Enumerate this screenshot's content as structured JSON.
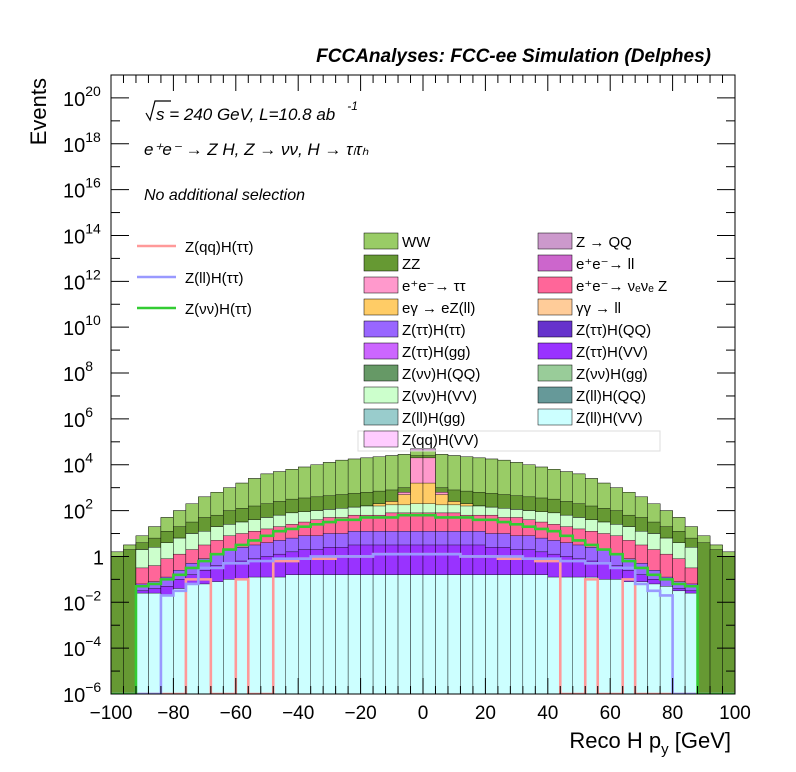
{
  "chart_data": {
    "type": "stacked-histogram",
    "title": "FCCAnalyses: FCC-ee Simulation (Delphes)",
    "xlabel": "Reco H p_y [GeV]",
    "ylabel": "Events",
    "xlim": [
      -100,
      100
    ],
    "ylim": [
      1e-06,
      1e+21
    ],
    "log_y": true,
    "x_ticks": [
      "−100",
      "−80",
      "−60",
      "−40",
      "−20",
      "0",
      "20",
      "40",
      "60",
      "80",
      "100"
    ],
    "y_ticks": [
      {
        "base": "10",
        "exp": "−6"
      },
      {
        "base": "10",
        "exp": "−4"
      },
      {
        "base": "10",
        "exp": "−2"
      },
      {
        "base": "1",
        "exp": ""
      },
      {
        "base": "10",
        "exp": "2"
      },
      {
        "base": "10",
        "exp": "4"
      },
      {
        "base": "10",
        "exp": "6"
      },
      {
        "base": "10",
        "exp": "8"
      },
      {
        "base": "10",
        "exp": "10"
      },
      {
        "base": "10",
        "exp": "12"
      },
      {
        "base": "10",
        "exp": "14"
      },
      {
        "base": "10",
        "exp": "16"
      },
      {
        "base": "10",
        "exp": "18"
      },
      {
        "base": "10",
        "exp": "20"
      }
    ],
    "annotations": {
      "energy_sqrt": "s",
      "energy_rest": " = 240 GeV, L=10.8 ab",
      "lumi_exp": "-1",
      "process": "e⁺e⁻ → Z H, Z → νν, H → τₗτₕ",
      "selection": "No additional selection"
    },
    "signals": [
      {
        "name": "Z(qq)H(ττ)",
        "color": "#ff9999"
      },
      {
        "name": "Z(ll)H(ττ)",
        "color": "#9999ff"
      },
      {
        "name": "Z(νν)H(ττ)",
        "color": "#33cc33"
      }
    ],
    "backgrounds": [
      {
        "name": "WW",
        "color": "#99cc66"
      },
      {
        "name": "Z → QQ",
        "color": "#cc99cc"
      },
      {
        "name": "ZZ",
        "color": "#669933"
      },
      {
        "name": "e⁺e⁻→ ll",
        "color": "#cc66cc"
      },
      {
        "name": "e⁺e⁻→ ττ",
        "color": "#ff99cc"
      },
      {
        "name": "e⁺e⁻→ νₑνₑ Z",
        "color": "#ff6699"
      },
      {
        "name": "eγ → eZ(ll)",
        "color": "#ffcc66"
      },
      {
        "name": "γγ → ll",
        "color": "#ffcc99"
      },
      {
        "name": "Z(ττ)H(ττ)",
        "color": "#9966ff"
      },
      {
        "name": "Z(ττ)H(QQ)",
        "color": "#6633cc"
      },
      {
        "name": "Z(ττ)H(gg)",
        "color": "#cc66ff"
      },
      {
        "name": "Z(ττ)H(VV)",
        "color": "#9933ff"
      },
      {
        "name": "Z(νν)H(QQ)",
        "color": "#669966"
      },
      {
        "name": "Z(νν)H(gg)",
        "color": "#99cc99"
      },
      {
        "name": "Z(νν)H(VV)",
        "color": "#ccffcc"
      },
      {
        "name": "Z(ll)H(QQ)",
        "color": "#669999"
      },
      {
        "name": "Z(ll)H(gg)",
        "color": "#99cccc"
      },
      {
        "name": "Z(ll)H(VV)",
        "color": "#ccffff"
      },
      {
        "name": "Z(qq)H(VV)",
        "color": "#ffccff"
      }
    ],
    "bin_width_gev": 4,
    "bins_x_centers": [
      -98,
      -94,
      -90,
      -86,
      -82,
      -78,
      -74,
      -70,
      -66,
      -62,
      -58,
      -54,
      -50,
      -46,
      -42,
      -38,
      -34,
      -30,
      -26,
      -22,
      -18,
      -14,
      -10,
      -6,
      -2,
      2,
      6,
      10,
      14,
      18,
      22,
      26,
      30,
      34,
      38,
      42,
      46,
      50,
      54,
      58,
      62,
      66,
      70,
      74,
      78,
      82,
      86,
      90,
      94,
      98
    ],
    "stack_layers_log10_upper_edges": [
      {
        "name": "Z(ll)H(VV) and below",
        "color": "#ccffff",
        "values": [
          -6,
          -6,
          -1.6,
          -1.6,
          -1.7,
          -1.4,
          -1.2,
          -1.2,
          -1.1,
          -1.0,
          -1.0,
          -0.9,
          -0.9,
          -0.9,
          -0.8,
          -0.8,
          -0.8,
          -0.8,
          -0.8,
          -0.8,
          -0.8,
          -0.8,
          -0.8,
          -0.8,
          -0.8,
          -0.8,
          -0.8,
          -0.8,
          -0.8,
          -0.8,
          -0.8,
          -0.8,
          -0.8,
          -0.8,
          -0.8,
          -0.9,
          -0.9,
          -0.9,
          -0.9,
          -1.0,
          -1.0,
          -1.1,
          -1.1,
          -1.2,
          -1.3,
          -1.5,
          -1.6,
          -6,
          -6,
          -6
        ]
      },
      {
        "name": "Z(ττ)H(VV) and below",
        "color": "#9933ff",
        "values": [
          -6,
          -6,
          -1.5,
          -1.4,
          -1.3,
          -1.0,
          -0.8,
          -0.6,
          -0.4,
          -0.3,
          -0.2,
          -0.1,
          0.0,
          0.1,
          0.2,
          0.3,
          0.3,
          0.4,
          0.4,
          0.5,
          0.5,
          0.5,
          0.5,
          0.5,
          0.5,
          0.5,
          0.5,
          0.5,
          0.5,
          0.5,
          0.4,
          0.4,
          0.3,
          0.3,
          0.2,
          0.1,
          0.0,
          -0.1,
          -0.2,
          -0.3,
          -0.4,
          -0.6,
          -0.8,
          -1.0,
          -1.3,
          -1.4,
          -1.5,
          -6,
          -6,
          -6
        ]
      },
      {
        "name": "Z(ττ)H(ττ) and below",
        "color": "#9966ff",
        "values": [
          -6,
          -6,
          -1.2,
          -1.1,
          -0.9,
          -0.6,
          -0.3,
          -0.1,
          0.1,
          0.3,
          0.4,
          0.5,
          0.6,
          0.7,
          0.8,
          0.9,
          0.9,
          1.0,
          1.0,
          1.1,
          1.1,
          1.1,
          1.1,
          1.1,
          1.1,
          1.1,
          1.1,
          1.1,
          1.1,
          1.1,
          1.0,
          1.0,
          0.9,
          0.9,
          0.8,
          0.7,
          0.6,
          0.5,
          0.4,
          0.3,
          0.1,
          -0.1,
          -0.3,
          -0.6,
          -0.9,
          -1.1,
          -1.2,
          -6,
          -6,
          -6
        ]
      },
      {
        "name": "e⁺e⁻→ νₑνₑ Z and below",
        "color": "#ff6699",
        "values": [
          -6,
          -6,
          -0.5,
          -0.4,
          -0.1,
          0.1,
          0.3,
          0.5,
          0.7,
          0.9,
          1.0,
          1.1,
          1.2,
          1.3,
          1.4,
          1.5,
          1.6,
          1.7,
          1.7,
          1.8,
          1.8,
          1.8,
          1.9,
          1.9,
          1.9,
          1.9,
          1.9,
          1.9,
          1.8,
          1.8,
          1.8,
          1.7,
          1.7,
          1.6,
          1.5,
          1.4,
          1.3,
          1.2,
          1.1,
          1.0,
          0.9,
          0.7,
          0.5,
          0.3,
          0.1,
          -0.1,
          -0.5,
          -6,
          -6,
          -6
        ]
      },
      {
        "name": "Z(νν)H(VV) and below",
        "color": "#ccffcc",
        "values": [
          -6,
          -6,
          0.3,
          0.4,
          0.6,
          0.8,
          1.0,
          1.1,
          1.3,
          1.4,
          1.5,
          1.6,
          1.7,
          1.8,
          1.9,
          1.95,
          2.0,
          2.05,
          2.1,
          2.15,
          2.2,
          2.2,
          2.25,
          2.25,
          2.3,
          2.3,
          2.25,
          2.25,
          2.2,
          2.2,
          2.15,
          2.1,
          2.05,
          2.0,
          1.95,
          1.9,
          1.8,
          1.7,
          1.6,
          1.5,
          1.4,
          1.3,
          1.1,
          1.0,
          0.8,
          0.6,
          0.4,
          -6,
          -6,
          -6
        ]
      },
      {
        "name": "eγ → eZ(ll) and below",
        "color": "#ffcc66",
        "values": [
          -6,
          -6,
          0.3,
          0.4,
          0.6,
          0.8,
          1.0,
          1.1,
          1.3,
          1.4,
          1.5,
          1.6,
          1.7,
          1.8,
          1.9,
          1.95,
          2.0,
          2.05,
          2.1,
          2.15,
          2.2,
          2.3,
          2.4,
          2.7,
          3.2,
          3.2,
          2.7,
          2.4,
          2.3,
          2.2,
          2.15,
          2.1,
          2.05,
          2.0,
          1.95,
          1.9,
          1.8,
          1.7,
          1.6,
          1.5,
          1.4,
          1.3,
          1.1,
          1.0,
          0.8,
          0.6,
          0.4,
          -6,
          -6,
          -6
        ]
      },
      {
        "name": "e⁺e⁻→ ττ and below",
        "color": "#ff99cc",
        "values": [
          -6,
          -6,
          0.3,
          0.4,
          0.6,
          0.8,
          1.0,
          1.1,
          1.3,
          1.4,
          1.5,
          1.6,
          1.7,
          1.8,
          1.9,
          1.95,
          2.0,
          2.05,
          2.1,
          2.15,
          2.2,
          2.3,
          2.4,
          2.8,
          4.3,
          4.3,
          2.8,
          2.4,
          2.3,
          2.2,
          2.15,
          2.1,
          2.05,
          2.0,
          1.95,
          1.9,
          1.8,
          1.7,
          1.6,
          1.5,
          1.4,
          1.3,
          1.1,
          1.0,
          0.8,
          0.6,
          0.4,
          -6,
          -6,
          -6
        ]
      },
      {
        "name": "ZZ and below",
        "color": "#669933",
        "values": [
          0.0,
          0.3,
          0.6,
          0.8,
          1.1,
          1.3,
          1.5,
          1.7,
          1.8,
          2.0,
          2.1,
          2.2,
          2.3,
          2.4,
          2.5,
          2.55,
          2.6,
          2.65,
          2.7,
          2.75,
          2.8,
          2.85,
          2.9,
          3.0,
          4.4,
          4.4,
          3.0,
          2.9,
          2.85,
          2.8,
          2.75,
          2.7,
          2.65,
          2.6,
          2.55,
          2.5,
          2.4,
          2.3,
          2.2,
          2.1,
          2.0,
          1.8,
          1.7,
          1.5,
          1.3,
          1.1,
          0.8,
          0.6,
          0.3,
          0.0
        ]
      },
      {
        "name": "WW and below",
        "color": "#99cc66",
        "values": [
          0.2,
          0.5,
          0.9,
          1.3,
          1.7,
          2.0,
          2.3,
          2.6,
          2.8,
          3.0,
          3.2,
          3.4,
          3.6,
          3.7,
          3.8,
          3.9,
          4.0,
          4.1,
          4.2,
          4.25,
          4.3,
          4.35,
          4.4,
          4.45,
          4.6,
          4.6,
          4.45,
          4.4,
          4.35,
          4.3,
          4.25,
          4.2,
          4.1,
          4.0,
          3.9,
          3.8,
          3.7,
          3.6,
          3.4,
          3.2,
          3.0,
          2.8,
          2.6,
          2.3,
          2.0,
          1.7,
          1.3,
          0.9,
          0.5,
          0.2
        ]
      },
      {
        "name": "Z → QQ and below",
        "color": "#cc99cc",
        "values": [
          0.2,
          0.5,
          0.9,
          1.3,
          1.7,
          2.0,
          2.3,
          2.6,
          2.8,
          3.0,
          3.2,
          3.4,
          3.6,
          3.7,
          3.8,
          3.9,
          4.0,
          4.1,
          4.2,
          4.25,
          4.3,
          4.35,
          4.4,
          4.45,
          4.7,
          4.7,
          4.45,
          4.4,
          4.35,
          4.3,
          4.25,
          4.2,
          4.1,
          4.0,
          3.9,
          3.8,
          3.7,
          3.6,
          3.4,
          3.2,
          3.0,
          2.8,
          2.6,
          2.3,
          2.0,
          1.7,
          1.3,
          0.9,
          0.5,
          0.2
        ]
      }
    ],
    "signal_lines_log10": {
      "Z(νν)H(ττ)": [
        -6,
        -6,
        -1.3,
        -1.2,
        -1.0,
        -0.8,
        -0.5,
        -0.2,
        0.1,
        0.3,
        0.5,
        0.7,
        0.9,
        1.1,
        1.2,
        1.3,
        1.4,
        1.5,
        1.6,
        1.6,
        1.7,
        1.7,
        1.7,
        1.8,
        1.8,
        1.8,
        1.7,
        1.7,
        1.7,
        1.6,
        1.6,
        1.5,
        1.4,
        1.3,
        1.2,
        1.1,
        0.9,
        0.7,
        0.5,
        0.3,
        0.1,
        -0.2,
        -0.5,
        -0.8,
        -1.0,
        -1.2,
        -1.3,
        -6,
        -6,
        -6
      ],
      "Z(ll)H(ττ)": [
        -6,
        -6,
        -6,
        -6,
        -1.7,
        -1.5,
        -1.2,
        -0.5,
        -0.5,
        -0.3,
        -0.3,
        -0.2,
        -0.2,
        -0.1,
        -0.1,
        -0.1,
        0.0,
        0.0,
        0.0,
        0.0,
        0.0,
        0.1,
        0.1,
        0.1,
        0.1,
        0.1,
        0.1,
        0.1,
        0.0,
        0.0,
        0.0,
        0.0,
        0.0,
        -0.1,
        -0.1,
        -0.1,
        -0.2,
        -0.2,
        -0.3,
        -0.3,
        -0.5,
        -0.5,
        -1.2,
        -1.5,
        -1.7,
        -6,
        -6,
        -6,
        -6,
        -6
      ],
      "Z(qq)H(ττ)": [
        -6,
        -6,
        -6,
        -6,
        -6,
        -6,
        -1.0,
        -1.0,
        -6,
        -6,
        -1.0,
        -6,
        -6,
        -0.2,
        -0.2,
        -0.1,
        -0.1,
        -0.1,
        0.0,
        0.0,
        0.0,
        0.1,
        0.1,
        0.1,
        0.1,
        0.1,
        0.1,
        0.1,
        0.0,
        0.0,
        0.0,
        -0.1,
        -0.1,
        -0.1,
        -0.2,
        -0.2,
        -6,
        -6,
        -1.0,
        -6,
        -6,
        -1.0,
        -6,
        -6,
        -6,
        -6,
        -6,
        -6,
        -6,
        -6
      ]
    }
  }
}
